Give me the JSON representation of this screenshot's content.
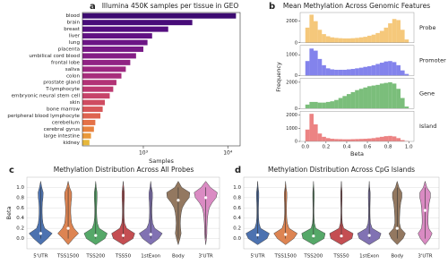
{
  "chart_data": [
    {
      "type": "bar",
      "orientation": "horizontal",
      "panel_label": "a",
      "title": "Illumina 450K samples per tissue in GEO",
      "x_label": "Samples",
      "x_scale": "log",
      "categories": [
        "blood",
        "brain",
        "breast",
        "liver",
        "lung",
        "placenta",
        "umbilical cord blood",
        "frontal lobe",
        "saliva",
        "colon",
        "prostate gland",
        "T-lymphocyte",
        "embryonic neural stem cell",
        "skin",
        "bone marrow",
        "peripheral blood lymphocyte",
        "cerebellum",
        "cerebral gyrus",
        "large intestine",
        "kidney"
      ],
      "values": [
        12500,
        3800,
        1970,
        1270,
        1120,
        1000,
        820,
        700,
        620,
        550,
        480,
        440,
        400,
        350,
        330,
        310,
        270,
        260,
        240,
        230
      ],
      "colors": [
        "#3d0b71",
        "#480c79",
        "#540e7f",
        "#601183",
        "#6c1585",
        "#781a86",
        "#841e85",
        "#902384",
        "#9c2880",
        "#a72d7b",
        "#b23376",
        "#bc3a70",
        "#c64369",
        "#cf4c61",
        "#d75759",
        "#de6350",
        "#e47147",
        "#e8823f",
        "#e9983a",
        "#e6b73b"
      ],
      "xlim": [
        190,
        14000
      ],
      "xticks": [
        {
          "value": 1000,
          "label": "10³"
        },
        {
          "value": 10000,
          "label": "10⁴"
        }
      ]
    },
    {
      "type": "histogram",
      "panel_label": "b",
      "title": "Mean Methylation Across Genomic Features",
      "x_label": "Beta",
      "y_label": "Frequency",
      "bins": [
        0,
        0.04,
        0.08,
        0.12,
        0.16,
        0.2,
        0.24,
        0.28,
        0.32,
        0.36,
        0.4,
        0.44,
        0.48,
        0.52,
        0.56,
        0.6,
        0.64,
        0.68,
        0.72,
        0.76,
        0.8,
        0.84,
        0.88,
        0.92,
        0.96,
        1
      ],
      "xlim": [
        -0.05,
        1.05
      ],
      "xticks": [
        {
          "value": 0,
          "label": "0.0"
        },
        0.2,
        0.4,
        0.6,
        0.8,
        {
          "value": 1,
          "label": "1.0"
        }
      ],
      "series": [
        {
          "name": "Probe",
          "color": "#f2b64f",
          "values": [
            1400,
            2600,
            2000,
            1200,
            800,
            600,
            500,
            450,
            420,
            400,
            400,
            420,
            450,
            500,
            550,
            650,
            750,
            900,
            1100,
            1400,
            1800,
            2200,
            2100,
            1200,
            300
          ],
          "ylim": [
            0,
            2800
          ],
          "yticks": [
            0,
            2000
          ]
        },
        {
          "name": "Promoter",
          "color": "#5a5ae6",
          "values": [
            700,
            1300,
            1200,
            800,
            500,
            350,
            300,
            280,
            280,
            280,
            300,
            320,
            350,
            380,
            420,
            450,
            500,
            560,
            620,
            680,
            700,
            650,
            500,
            250,
            80
          ],
          "ylim": [
            0,
            1450
          ],
          "yticks": [
            0,
            1000
          ]
        },
        {
          "name": "Gene",
          "color": "#4fa84f",
          "values": [
            300,
            500,
            500,
            450,
            450,
            500,
            550,
            650,
            800,
            950,
            1100,
            1250,
            1400,
            1500,
            1600,
            1700,
            1750,
            1800,
            1900,
            1950,
            2000,
            1900,
            1500,
            800,
            150
          ],
          "ylim": [
            0,
            2300
          ],
          "yticks": [
            0,
            2000
          ]
        },
        {
          "name": "Island",
          "color": "#e65a5a",
          "values": [
            900,
            2100,
            1300,
            600,
            350,
            250,
            200,
            180,
            170,
            160,
            160,
            170,
            180,
            190,
            200,
            220,
            250,
            300,
            350,
            400,
            420,
            380,
            250,
            100,
            30
          ],
          "ylim": [
            0,
            2300
          ],
          "yticks": [
            0,
            1000,
            2000
          ]
        }
      ]
    },
    {
      "type": "violin",
      "panel_label": "c",
      "title": "Methylation Distribution Across All Probes",
      "y_label": "Beta",
      "categories": [
        "5'UTR",
        "TSS1500",
        "TSS200",
        "TSS50",
        "1stExon",
        "Body",
        "3'UTR"
      ],
      "colors": [
        "#4c72b0",
        "#dd8452",
        "#55a868",
        "#c44e52",
        "#8172b3",
        "#937860",
        "#da8bc3"
      ],
      "density_y": [
        0,
        0.1,
        0.2,
        0.3,
        0.4,
        0.5,
        0.6,
        0.7,
        0.8,
        0.9,
        1
      ],
      "density": [
        [
          0.6,
          1.0,
          0.35,
          0.2,
          0.15,
          0.13,
          0.13,
          0.15,
          0.2,
          0.22,
          0.1
        ],
        [
          0.45,
          0.9,
          0.5,
          0.3,
          0.25,
          0.22,
          0.22,
          0.25,
          0.3,
          0.3,
          0.12
        ],
        [
          0.8,
          1.0,
          0.3,
          0.15,
          0.1,
          0.08,
          0.08,
          0.1,
          0.12,
          0.12,
          0.05
        ],
        [
          0.85,
          1.0,
          0.3,
          0.12,
          0.08,
          0.07,
          0.07,
          0.08,
          0.1,
          0.1,
          0.05
        ],
        [
          0.7,
          1.0,
          0.35,
          0.17,
          0.12,
          0.1,
          0.1,
          0.12,
          0.15,
          0.15,
          0.06
        ],
        [
          0.15,
          0.25,
          0.2,
          0.18,
          0.2,
          0.25,
          0.35,
          0.6,
          0.95,
          1.0,
          0.3
        ],
        [
          0.06,
          0.1,
          0.1,
          0.12,
          0.15,
          0.2,
          0.3,
          0.55,
          0.9,
          1.0,
          0.4
        ]
      ],
      "medians": [
        0.1,
        0.2,
        0.06,
        0.06,
        0.08,
        0.75,
        0.8
      ],
      "ylim": [
        -0.2,
        1.2
      ],
      "yticks": [
        {
          "value": 0,
          "label": "0.0"
        },
        0.2,
        0.4,
        0.6,
        0.8,
        {
          "value": 1,
          "label": "1.0"
        }
      ],
      "grid": true
    },
    {
      "type": "violin",
      "panel_label": "d",
      "title": "Methylation Distribution Across CpG Islands",
      "categories": [
        "5'UTR",
        "TSS1500",
        "TSS200",
        "TSS50",
        "1stExon",
        "Body",
        "3'UTR"
      ],
      "colors": [
        "#4c72b0",
        "#dd8452",
        "#55a868",
        "#c44e52",
        "#8172b3",
        "#937860",
        "#da8bc3"
      ],
      "density_y": [
        0,
        0.1,
        0.2,
        0.3,
        0.4,
        0.5,
        0.6,
        0.7,
        0.8,
        0.9,
        1
      ],
      "density": [
        [
          0.8,
          1.0,
          0.25,
          0.12,
          0.08,
          0.07,
          0.07,
          0.08,
          0.1,
          0.1,
          0.04
        ],
        [
          0.7,
          1.0,
          0.3,
          0.15,
          0.1,
          0.08,
          0.08,
          0.09,
          0.11,
          0.11,
          0.04
        ],
        [
          0.9,
          1.0,
          0.2,
          0.08,
          0.05,
          0.04,
          0.04,
          0.05,
          0.06,
          0.06,
          0.03
        ],
        [
          0.9,
          1.0,
          0.2,
          0.08,
          0.05,
          0.04,
          0.04,
          0.05,
          0.06,
          0.06,
          0.03
        ],
        [
          0.85,
          1.0,
          0.25,
          0.1,
          0.07,
          0.06,
          0.06,
          0.07,
          0.08,
          0.08,
          0.03
        ],
        [
          0.5,
          0.7,
          0.3,
          0.2,
          0.2,
          0.22,
          0.25,
          0.3,
          0.4,
          0.4,
          0.15
        ],
        [
          0.4,
          0.6,
          0.3,
          0.25,
          0.25,
          0.27,
          0.3,
          0.35,
          0.45,
          0.45,
          0.15
        ]
      ],
      "medians": [
        0.07,
        0.08,
        0.05,
        0.05,
        0.06,
        0.2,
        0.55
      ],
      "ylim": [
        -0.2,
        1.2
      ],
      "yticks": [
        {
          "value": 0,
          "label": "0.0"
        },
        0.2,
        0.4,
        0.6,
        0.8,
        {
          "value": 1,
          "label": "1.0"
        }
      ],
      "grid": true
    }
  ]
}
